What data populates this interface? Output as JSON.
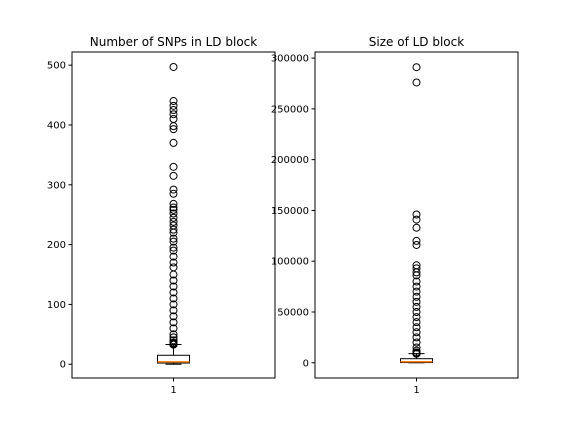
{
  "chart_data": [
    {
      "type": "boxplot",
      "title": "Number of SNPs in LD block",
      "xtick_labels": [
        "1"
      ],
      "ylim": [
        -23,
        522
      ],
      "yticks": [
        0,
        100,
        200,
        300,
        400,
        500
      ],
      "ytick_labels": [
        "0",
        "100",
        "200",
        "300",
        "400",
        "500"
      ],
      "grid": false,
      "box": {
        "whisker_low": 0,
        "q1": 2,
        "median": 4,
        "q3": 15,
        "whisker_high": 33
      },
      "outliers": [
        497,
        440,
        432,
        425,
        418,
        410,
        398,
        393,
        370,
        330,
        315,
        292,
        285,
        268,
        262,
        258,
        252,
        245,
        238,
        232,
        225,
        220,
        210,
        205,
        195,
        190,
        180,
        170,
        162,
        150,
        140,
        130,
        120,
        110,
        100,
        90,
        80,
        70,
        60,
        50,
        45,
        40,
        36
      ],
      "colors": {
        "box": "#000000",
        "median": "#ff7f0e",
        "flier": "#000000"
      }
    },
    {
      "type": "boxplot",
      "title": "Size of LD block",
      "xtick_labels": [
        "1"
      ],
      "ylim": [
        -15000,
        306000
      ],
      "yticks": [
        0,
        50000,
        100000,
        150000,
        200000,
        250000,
        300000
      ],
      "ytick_labels": [
        "0",
        "50000",
        "100000",
        "150000",
        "200000",
        "250000",
        "300000"
      ],
      "grid": false,
      "box": {
        "whisker_low": 0,
        "q1": 200,
        "median": 1000,
        "q3": 4000,
        "whisker_high": 9000
      },
      "outliers": [
        291000,
        276000,
        146000,
        141000,
        133000,
        120000,
        116000,
        96000,
        93000,
        89000,
        86000,
        80000,
        75000,
        70000,
        65000,
        60000,
        55000,
        50000,
        45000,
        40000,
        35000,
        30000,
        25000,
        20000,
        15000,
        12000,
        10000
      ],
      "colors": {
        "box": "#000000",
        "median": "#ff7f0e",
        "flier": "#000000"
      }
    }
  ]
}
